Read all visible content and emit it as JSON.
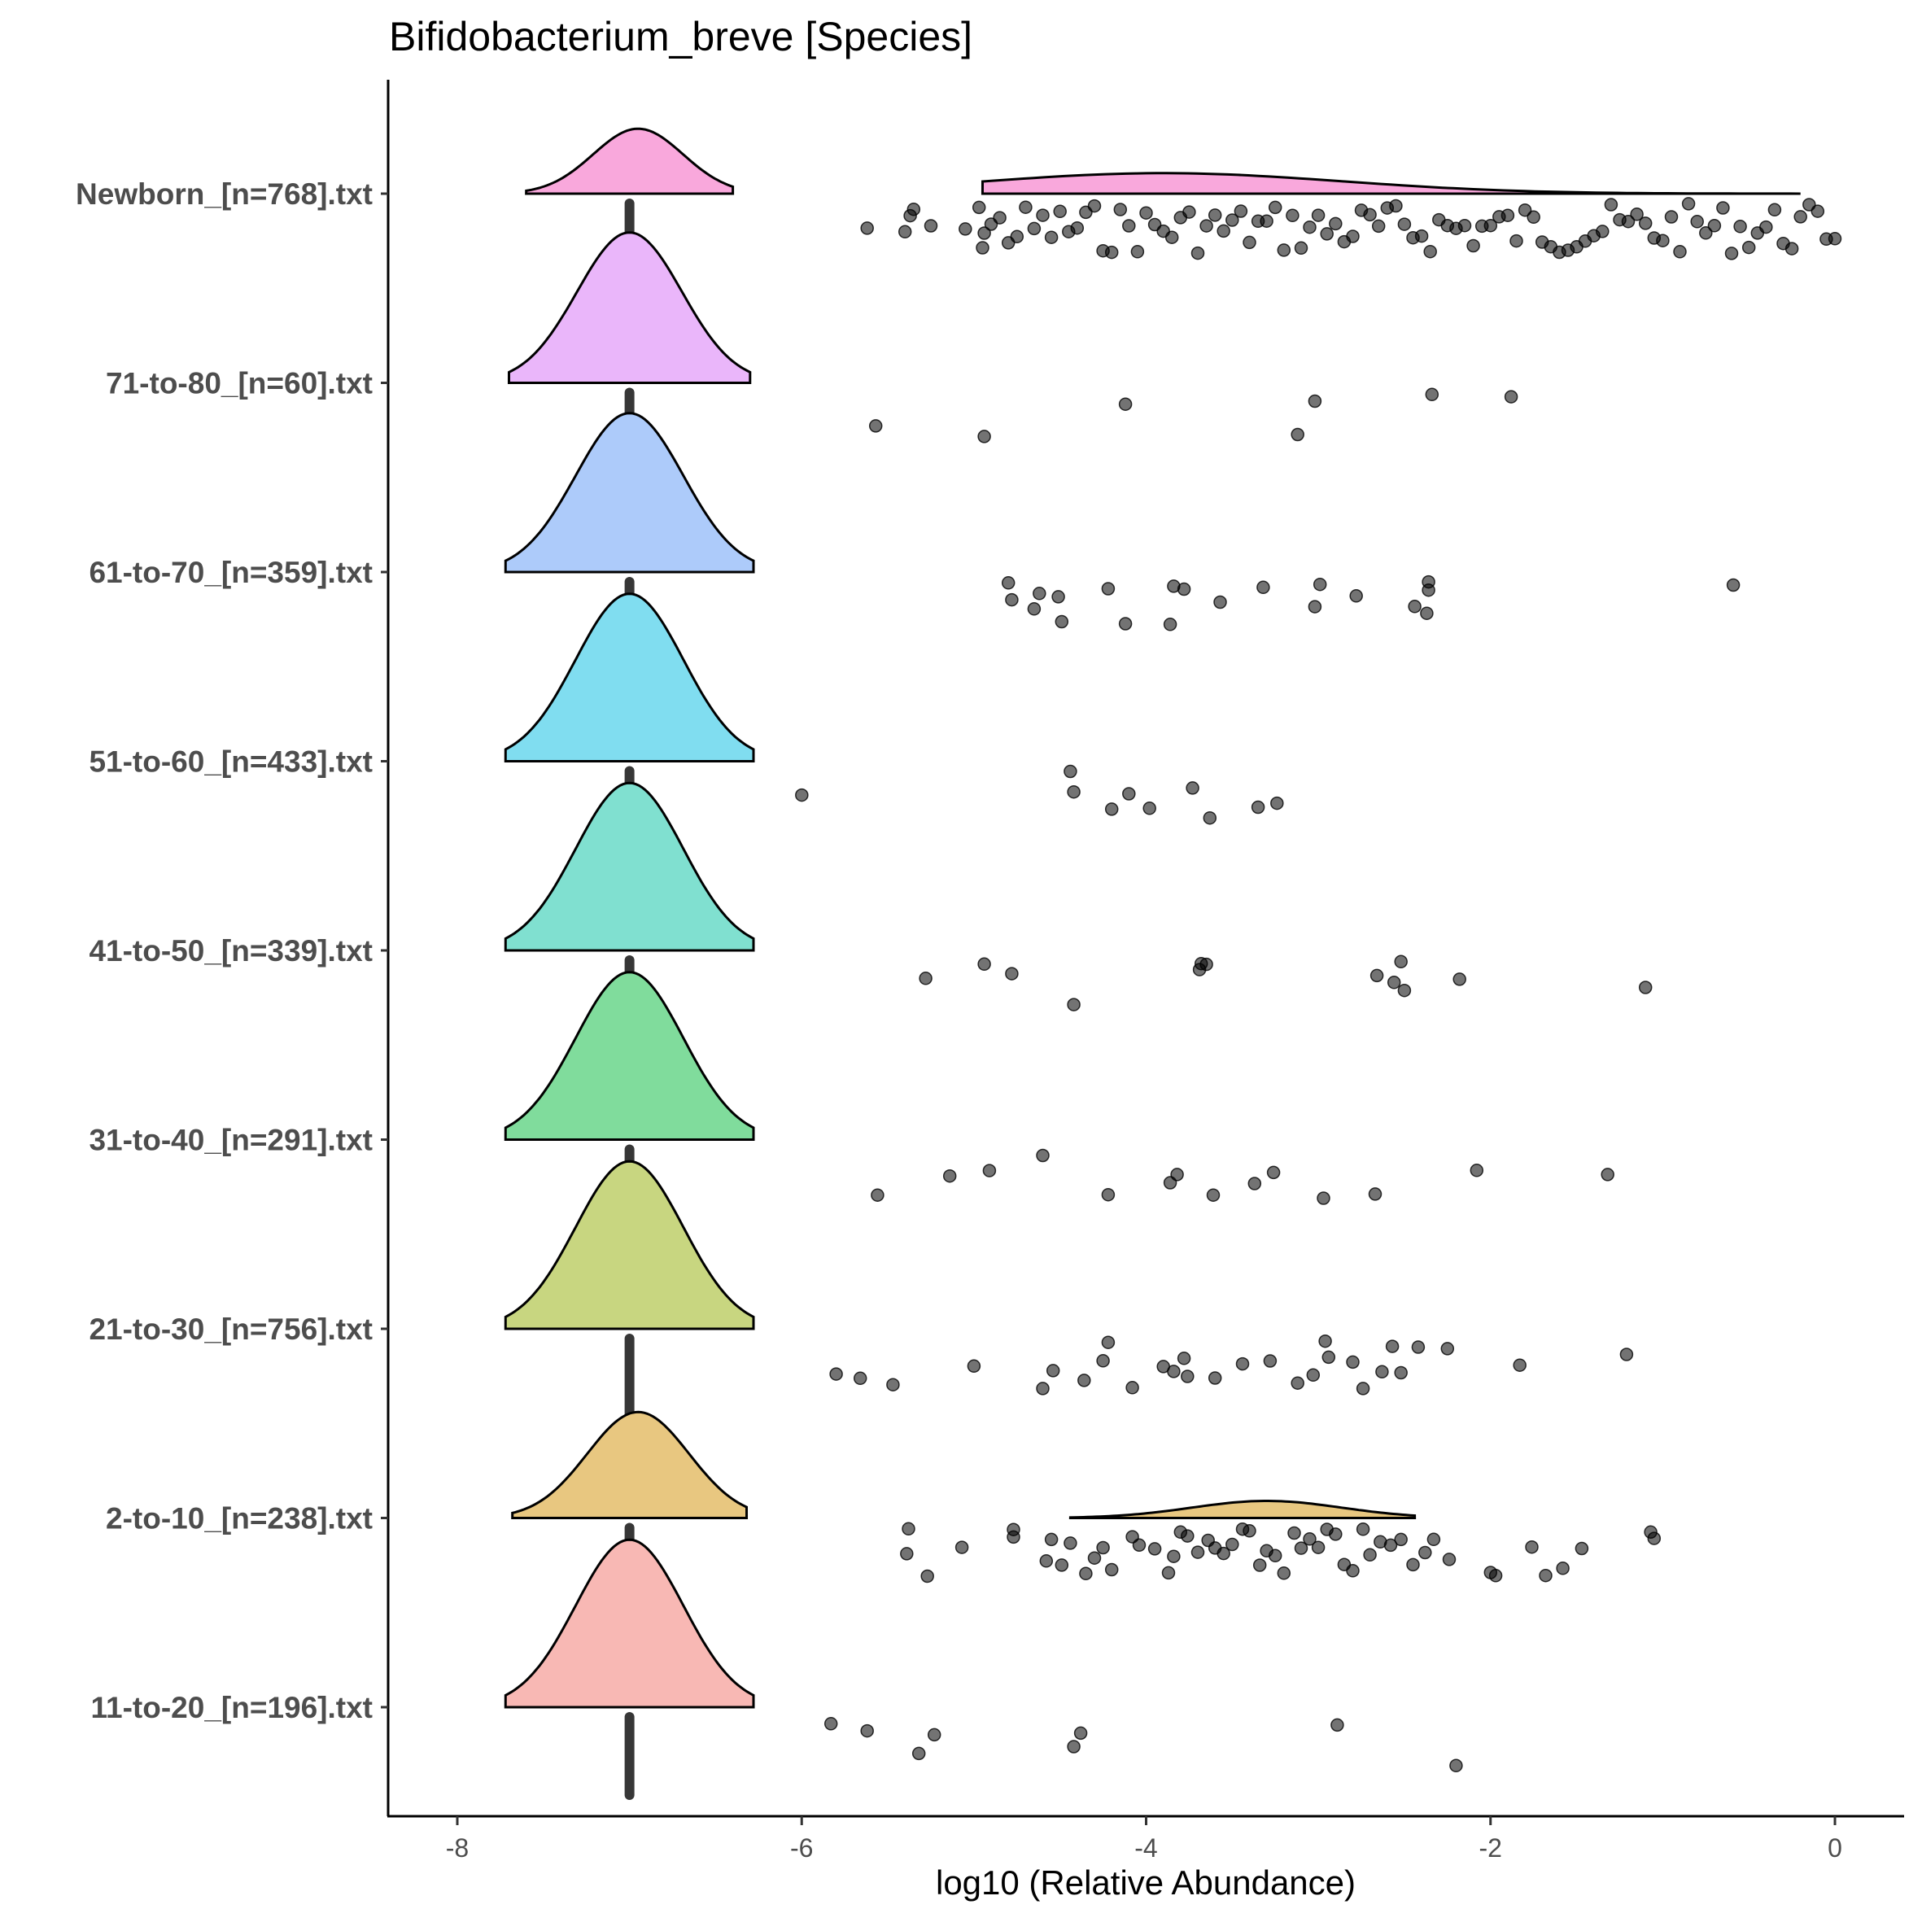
{
  "chart_data": {
    "type": "raincloud",
    "title": "Bifidobacterium_breve [Species]",
    "xlabel": "log10 (Relative Abundance)",
    "ylabel": "",
    "xlim": [
      -8.4,
      0.4
    ],
    "x_ticks": [
      -8,
      -6,
      -4,
      -2,
      0
    ],
    "x_tick_labels": [
      "-8",
      "-6",
      "-4",
      "-2",
      "0"
    ],
    "zero_placeholder_value": -7,
    "grid": false,
    "legend": "none",
    "point_color": "#000000",
    "groups": [
      {
        "label": "Newborn_[n=768].txt",
        "color": "#F9A8DC",
        "nonzero_count": 430,
        "nonzero_range": [
          -5.7,
          0
        ],
        "density_peaks": [
          {
            "min": -7.6,
            "max": -6.4,
            "mode": -6.95,
            "height": 0.38
          },
          {
            "min": -4.95,
            "max": -0.2,
            "mode": -3.9,
            "height": 0.12
          }
        ],
        "points": [
          -5.62,
          -5.4,
          -5.35,
          -5.37,
          -5.25,
          -5.05,
          -4.97,
          -4.95,
          -4.94,
          -4.9,
          -4.85,
          -4.8,
          -4.75,
          -4.7,
          -4.65,
          -4.6,
          -4.55,
          -4.5,
          -4.45,
          -4.4,
          -4.35,
          -4.3,
          -4.25,
          -4.2,
          -4.15,
          -4.1,
          -4.05,
          -4.0,
          -3.95,
          -3.9,
          -3.85,
          -3.8,
          -3.75,
          -3.7,
          -3.65,
          -3.6,
          -3.55,
          -3.5,
          -3.45,
          -3.4,
          -3.35,
          -3.3,
          -3.25,
          -3.2,
          -3.15,
          -3.1,
          -3.05,
          -3.0,
          -2.95,
          -2.9,
          -2.85,
          -2.8,
          -2.75,
          -2.7,
          -2.65,
          -2.6,
          -2.55,
          -2.5,
          -2.45,
          -2.4,
          -2.35,
          -2.3,
          -2.25,
          -2.2,
          -2.15,
          -2.1,
          -2.05,
          -2.0,
          -1.95,
          -1.9,
          -1.85,
          -1.8,
          -1.75,
          -1.7,
          -1.65,
          -1.6,
          -1.55,
          -1.5,
          -1.45,
          -1.4,
          -1.35,
          -1.3,
          -1.25,
          -1.2,
          -1.15,
          -1.1,
          -1.05,
          -1.0,
          -0.95,
          -0.9,
          -0.85,
          -0.8,
          -0.75,
          -0.7,
          -0.65,
          -0.6,
          -0.55,
          -0.5,
          -0.45,
          -0.4,
          -0.35,
          -0.3,
          -0.25,
          -0.2,
          -0.15,
          -0.1,
          -0.05,
          0.0
        ]
      },
      {
        "label": "71-to-80_[n=60].txt",
        "color": "#EAB6FA",
        "nonzero_count": 8,
        "density_peaks": [
          {
            "min": -7.7,
            "max": -6.3,
            "mode": -7.0,
            "height": 0.88
          }
        ],
        "points": [
          -5.57,
          -4.94,
          -4.12,
          -3.12,
          -3.02,
          -2.34,
          -1.88
        ]
      },
      {
        "label": "61-to-70_[n=359].txt",
        "color": "#ADCBFA",
        "nonzero_count": 23,
        "density_peaks": [
          {
            "min": -7.72,
            "max": -6.28,
            "mode": -7.0,
            "height": 0.93
          }
        ],
        "points": [
          -4.8,
          -4.65,
          -4.12,
          -3.86,
          -3.78,
          -3.02,
          -2.99,
          -2.78,
          -2.44,
          -0.59,
          -4.78,
          -4.62,
          -4.51,
          -4.49,
          -4.22,
          -2.36,
          -2.36,
          -2.37,
          -3.84,
          -3.57,
          -3.32
        ]
      },
      {
        "label": "51-to-60_[n=433].txt",
        "color": "#80DDF0",
        "nonzero_count": 10,
        "density_peaks": [
          {
            "min": -7.72,
            "max": -6.28,
            "mode": -7.0,
            "height": 0.98
          }
        ],
        "points": [
          -6.0,
          -4.42,
          -4.44,
          -4.2,
          -4.1,
          -3.98,
          -3.73,
          -3.63,
          -3.35,
          -3.24
        ]
      },
      {
        "label": "41-to-50_[n=339].txt",
        "color": "#80E0D0",
        "nonzero_count": 16,
        "density_peaks": [
          {
            "min": -7.72,
            "max": -6.28,
            "mode": -7.0,
            "height": 0.98
          }
        ],
        "points": [
          -4.78,
          -5.28,
          -4.94,
          -4.42,
          -3.65,
          -3.68,
          -3.69,
          -2.66,
          -2.52,
          -2.5,
          -2.56,
          -2.18,
          -1.1
        ]
      },
      {
        "label": "31-to-40_[n=291].txt",
        "color": "#80DC9C",
        "nonzero_count": 16,
        "density_peaks": [
          {
            "min": -7.72,
            "max": -6.28,
            "mode": -7.0,
            "height": 0.98
          }
        ],
        "points": [
          -5.56,
          -5.14,
          -4.91,
          -4.6,
          -4.22,
          -3.86,
          -3.82,
          -3.61,
          -3.37,
          -3.26,
          -2.97,
          -2.67,
          -2.08,
          -1.32
        ]
      },
      {
        "label": "21-to-30_[n=756].txt",
        "color": "#C8D680",
        "nonzero_count": 40,
        "density_peaks": [
          {
            "min": -7.72,
            "max": -6.28,
            "mode": -7.0,
            "height": 0.98
          }
        ],
        "points": [
          -5.8,
          -5.66,
          -5.47,
          -5.0,
          -4.6,
          -4.54,
          -4.36,
          -4.25,
          -4.22,
          -4.08,
          -3.9,
          -3.84,
          -3.78,
          -3.76,
          -3.6,
          -3.44,
          -3.28,
          -3.12,
          -3.03,
          -2.96,
          -2.94,
          -2.8,
          -2.74,
          -2.63,
          -2.57,
          -2.52,
          -2.42,
          -2.25,
          -1.83,
          -1.21
        ]
      },
      {
        "label": "2-to-10_[n=238].txt",
        "color": "#E8C780",
        "nonzero_count": 90,
        "density_peaks": [
          {
            "min": -7.68,
            "max": -6.32,
            "mode": -6.95,
            "height": 0.62
          },
          {
            "min": -4.44,
            "max": -2.44,
            "mode": -3.3,
            "height": 0.1
          }
        ],
        "points": [
          -5.38,
          -5.27,
          -5.39,
          -4.77,
          -5.07,
          -4.77,
          -4.58,
          -4.55,
          -4.49,
          -4.44,
          -4.35,
          -4.3,
          -4.25,
          -4.2,
          -4.08,
          -4.04,
          -3.95,
          -3.87,
          -3.84,
          -3.8,
          -3.76,
          -3.7,
          -3.64,
          -3.6,
          -3.55,
          -3.5,
          -3.44,
          -3.4,
          -3.34,
          -3.3,
          -3.25,
          -3.2,
          -3.14,
          -3.1,
          -3.05,
          -3.0,
          -2.95,
          -2.9,
          -2.85,
          -2.8,
          -2.74,
          -2.7,
          -2.64,
          -2.58,
          -2.52,
          -2.45,
          -2.38,
          -2.33,
          -2.24,
          -2.0,
          -1.97,
          -1.76,
          -1.68,
          -1.58,
          -1.47,
          -1.07,
          -1.05
        ]
      },
      {
        "label": "11-to-20_[n=196].txt",
        "color": "#F8B8B4",
        "nonzero_count": 10,
        "density_peaks": [
          {
            "min": -7.72,
            "max": -6.28,
            "mode": -7.0,
            "height": 0.98
          }
        ],
        "points": [
          -5.83,
          -5.32,
          -4.42,
          -2.2,
          -5.62,
          -5.23,
          -4.38,
          -2.89
        ]
      }
    ]
  }
}
